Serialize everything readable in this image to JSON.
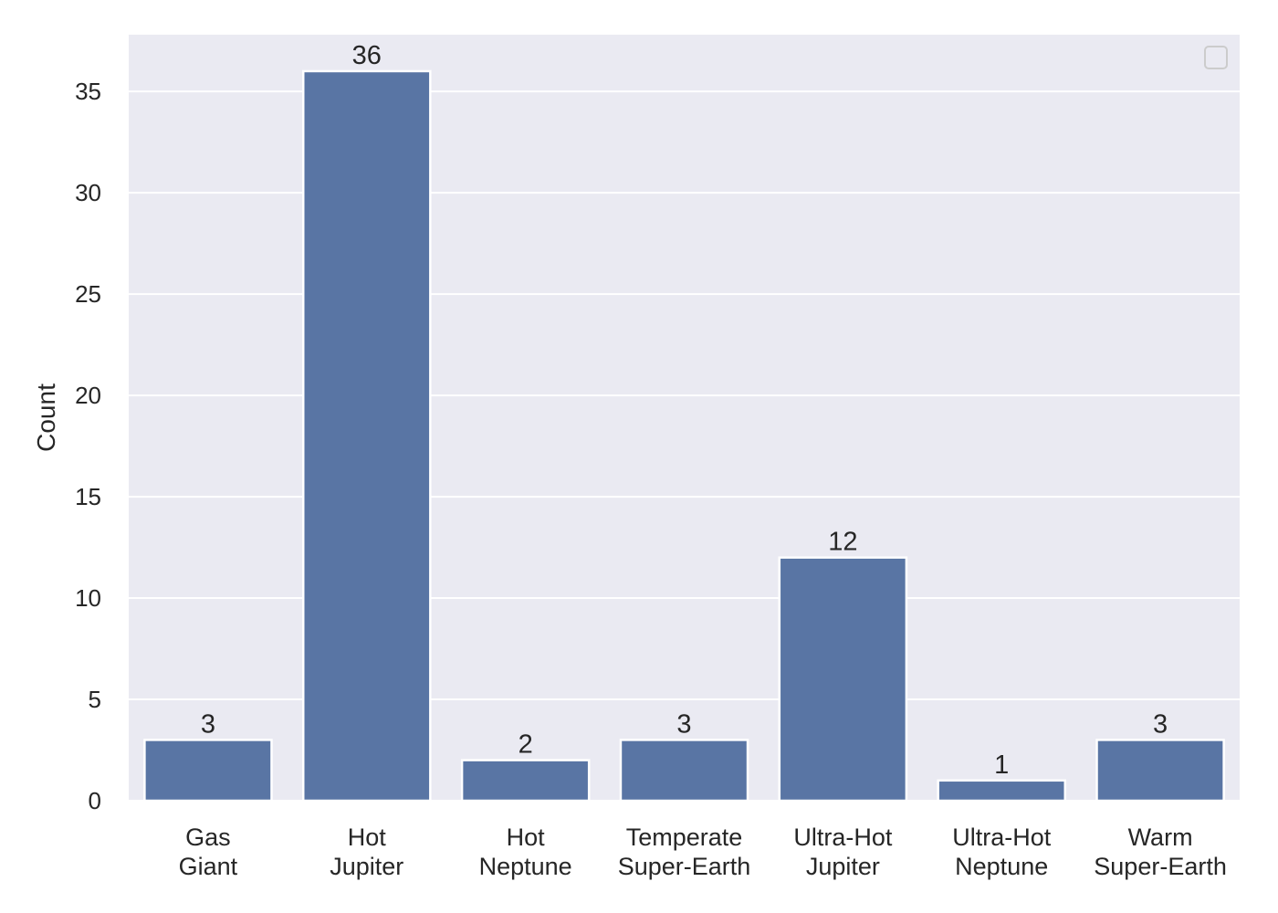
{
  "chart_data": {
    "type": "bar",
    "title": "",
    "xlabel": "",
    "ylabel": "Count",
    "categories": [
      [
        "Gas",
        "Giant"
      ],
      [
        "Hot",
        "Jupiter"
      ],
      [
        "Hot",
        "Neptune"
      ],
      [
        "Temperate",
        "Super-Earth"
      ],
      [
        "Ultra-Hot",
        "Jupiter"
      ],
      [
        "Ultra-Hot",
        "Neptune"
      ],
      [
        "Warm",
        "Super-Earth"
      ]
    ],
    "values": [
      3,
      36,
      2,
      3,
      12,
      1,
      3
    ],
    "data_labels": [
      "3",
      "36",
      "2",
      "3",
      "12",
      "1",
      "3"
    ],
    "ylim": [
      0,
      37.8
    ],
    "yticks": [
      0,
      5,
      10,
      15,
      20,
      25,
      30,
      35
    ],
    "grid": true,
    "legend": "top-right (empty)",
    "colors": {
      "bar": "#5975a4",
      "background": "#eaeaf2",
      "grid": "#ffffff",
      "text": "#262626"
    }
  }
}
